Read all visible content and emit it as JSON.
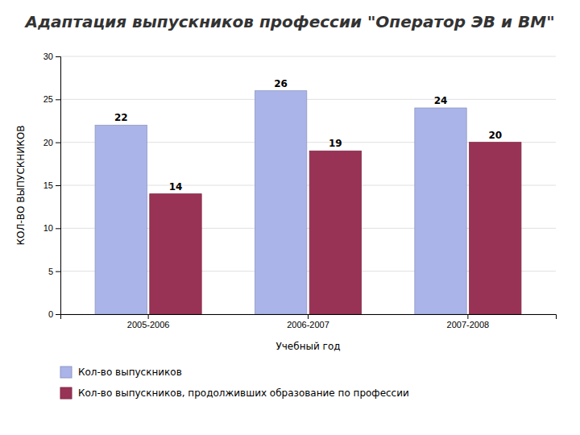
{
  "chart_data": {
    "type": "bar",
    "title": "Адаптация выпускников профессии \"Оператор ЭВ и ВМ\"",
    "xlabel": "Учебный год",
    "ylabel": "КОЛ-ВО ВЫПУСКНИКОВ",
    "categories": [
      "2005-2006",
      "2006-2007",
      "2007-2008"
    ],
    "series": [
      {
        "name": "Кол-во выпускников",
        "color": "#aab4e8",
        "values": [
          22,
          26,
          24
        ]
      },
      {
        "name": "Кол-во выпускников, продолживших образование по профессии",
        "color": "#993355",
        "values": [
          14,
          19,
          20
        ]
      }
    ],
    "ylim": [
      0,
      30
    ],
    "yticks": [
      0,
      5,
      10,
      15,
      20,
      25,
      30
    ],
    "grid": true,
    "data_labels": true,
    "legend": "bottom"
  }
}
